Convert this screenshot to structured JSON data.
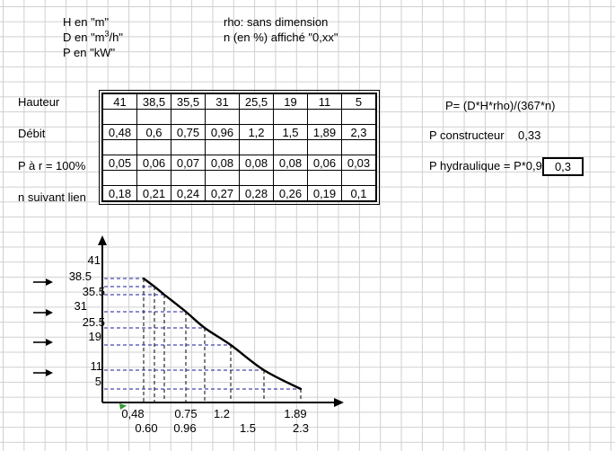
{
  "sheet": {
    "header": {
      "h_unit": "H en \"m\"",
      "d_unit_prefix": "D en \"m",
      "d_unit_sup": "3",
      "d_unit_suffix": "/h\"",
      "p_unit": "P en \"kW\"",
      "rho_note": "rho: sans dimension",
      "n_note": "n (en %) affiché \"0,xx\""
    },
    "table": {
      "row_labels": [
        "Hauteur",
        "Débit",
        "P à r = 100%",
        "n suivant lien"
      ],
      "rows": [
        [
          "41",
          "38,5",
          "35,5",
          "31",
          "25,5",
          "19",
          "11",
          "5"
        ],
        [
          "0,48",
          "0,6",
          "0,75",
          "0,96",
          "1,2",
          "1,5",
          "1,89",
          "2,3"
        ],
        [
          "0,05",
          "0,06",
          "0,07",
          "0,08",
          "0,08",
          "0,08",
          "0,06",
          "0,03"
        ],
        [
          "0,18",
          "0,21",
          "0,24",
          "0,27",
          "0,28",
          "0,26",
          "0,19",
          "0,1"
        ]
      ]
    },
    "formulas": {
      "power_formula": "P= (D*H*rho)/(367*n)",
      "constructor_label": "P constructeur",
      "constructor_value": "0,33",
      "hydraulic_label": "P hydraulique = P*0,9",
      "hydraulic_value": "0,3"
    }
  },
  "chart_data": {
    "type": "line",
    "title": "",
    "xlabel": "",
    "ylabel": "",
    "x": [
      0.48,
      0.6,
      0.75,
      0.96,
      1.2,
      1.5,
      1.89,
      2.3
    ],
    "y": [
      41,
      38.5,
      35.5,
      31,
      25.5,
      19,
      11,
      5
    ],
    "y_tick_labels": [
      "41",
      "38.5",
      "35.5",
      "31",
      "25.5",
      "19",
      "11",
      "5"
    ],
    "x_tick_labels": [
      "0,48",
      "0.60",
      "0.75",
      "0.96",
      "1.2",
      "1.5",
      "1.89",
      "2.3"
    ],
    "grid": false,
    "legend": "none",
    "colors": {
      "curve": "#000000",
      "horizontal_guides": "#1a1a99",
      "vertical_guides": "#000000",
      "axes": "#000000",
      "marker": "#339933"
    },
    "left_arrow_count": 4
  }
}
